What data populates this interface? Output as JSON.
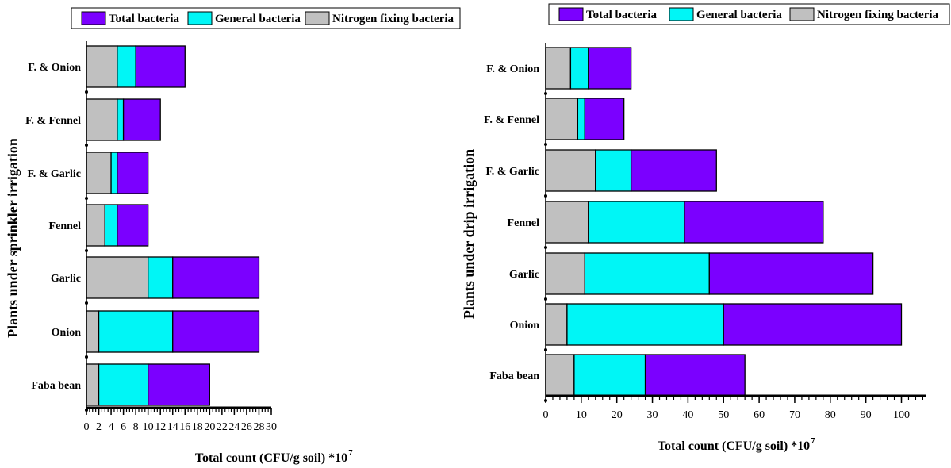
{
  "legend": {
    "total": "Total bacteria",
    "general": "General bacteria",
    "nitrogen": "Nitrogen fixing bacteria"
  },
  "colors": {
    "total": "#7b00ff",
    "general": "#00f6f6",
    "nitrogen": "#c0c0c0"
  },
  "chart_data": [
    {
      "type": "bar",
      "orientation": "horizontal",
      "stacked": true,
      "categories": [
        "Faba bean",
        "Onion",
        "Garlic",
        "Fennel",
        "F. & Garlic",
        "F. & Fennel",
        "F. & Onion"
      ],
      "series": [
        {
          "name": "Nitrogen fixing bacteria",
          "values": [
            2,
            2,
            10,
            3,
            4,
            5,
            5
          ]
        },
        {
          "name": "General bacteria",
          "values": [
            8,
            12,
            4,
            2,
            1,
            1,
            3
          ]
        },
        {
          "name": "Total bacteria",
          "values": [
            10,
            14,
            14,
            5,
            5,
            6,
            8
          ]
        }
      ],
      "xlabel": "Total count (CFU/g soil) *10",
      "xlabel_exp": "7",
      "ylabel": "Plants under sprinkler irrigation",
      "xlim": [
        0,
        30
      ],
      "xticks": [
        0,
        2,
        4,
        6,
        8,
        10,
        12,
        14,
        16,
        18,
        20,
        22,
        24,
        26,
        28,
        30
      ],
      "legend_position": "top",
      "grid": false
    },
    {
      "type": "bar",
      "orientation": "horizontal",
      "stacked": true,
      "categories": [
        "Faba bean",
        "Onion",
        "Garlic",
        "Fennel",
        "F. & Garlic",
        "F. & Fennel",
        "F. & Onion"
      ],
      "series": [
        {
          "name": "Nitrogen fixing bacteria",
          "values": [
            8,
            6,
            11,
            12,
            14,
            9,
            7
          ]
        },
        {
          "name": "General bacteria",
          "values": [
            20,
            44,
            35,
            27,
            10,
            2,
            5
          ]
        },
        {
          "name": "Total bacteria",
          "values": [
            28,
            50,
            46,
            39,
            24,
            11,
            12
          ]
        }
      ],
      "xlabel": "Total count (CFU/g soil) *10",
      "xlabel_exp": "7",
      "ylabel": "Plants under drip irrigation",
      "xlim": [
        0,
        107
      ],
      "xticks": [
        0,
        10,
        20,
        30,
        40,
        50,
        60,
        70,
        80,
        90,
        100
      ],
      "legend_position": "top",
      "grid": false
    }
  ]
}
